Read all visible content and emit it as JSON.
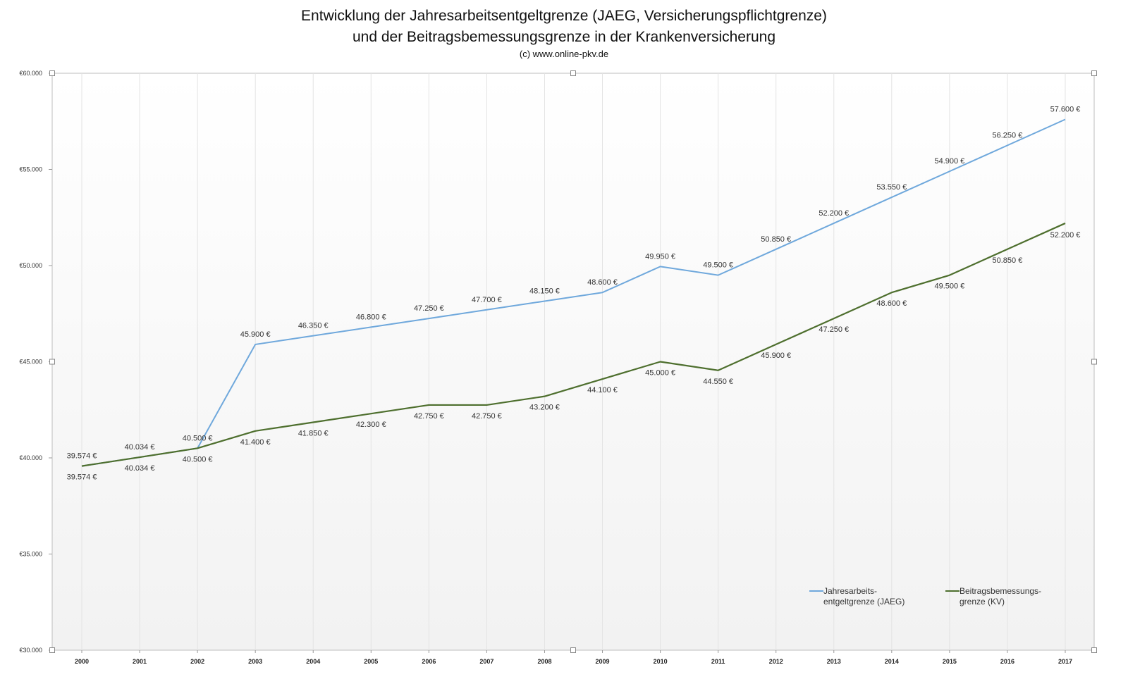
{
  "chart_data": {
    "type": "line",
    "title": "Entwicklung der Jahresarbeitsentgeltgrenze (JAEG, Versicherungspflichtgrenze)",
    "subtitle": "und der Beitragsbemessungsgrenze in der Krankenversicherung",
    "source": "(c) www.online-pkv.de",
    "xlabel": "",
    "ylabel": "",
    "ylim": [
      30000,
      60000
    ],
    "yticks": [
      30000,
      35000,
      40000,
      45000,
      50000,
      55000,
      60000
    ],
    "ytick_labels": [
      "€30.000",
      "€35.000",
      "€40.000",
      "€45.000",
      "€50.000",
      "€55.000",
      "€60.000"
    ],
    "categories": [
      "2000",
      "2001",
      "2002",
      "2003",
      "2004",
      "2005",
      "2006",
      "2007",
      "2008",
      "2009",
      "2010",
      "2011",
      "2012",
      "2013",
      "2014",
      "2015",
      "2016",
      "2017"
    ],
    "legend_position": "bottom-right",
    "series": [
      {
        "name": "Jahresarbeits-entgeltgrenze (JAEG)",
        "legend_lines": [
          "Jahresarbeits-",
          "entgeltgrenze (JAEG)"
        ],
        "color": "#6fa8dc",
        "values": [
          39574,
          40034,
          40500,
          45900,
          46350,
          46800,
          47250,
          47700,
          48150,
          48600,
          49950,
          49500,
          50850,
          52200,
          53550,
          54900,
          56250,
          57600
        ],
        "labels": [
          "39.574 €",
          "40.034 €",
          "40.500 €",
          "45.900 €",
          "46.350 €",
          "46.800 €",
          "47.250 €",
          "47.700 €",
          "48.150 €",
          "48.600 €",
          "49.950 €",
          "49.500 €",
          "50.850 €",
          "52.200 €",
          "53.550 €",
          "54.900 €",
          "56.250 €",
          "57.600 €"
        ]
      },
      {
        "name": "Beitragsbemessungs-grenze (KV)",
        "legend_lines": [
          "Beitragsbemessungs-",
          "grenze (KV)"
        ],
        "color": "#4e6f2e",
        "values": [
          39574,
          40034,
          40500,
          41400,
          41850,
          42300,
          42750,
          42750,
          43200,
          44100,
          45000,
          44550,
          45900,
          47250,
          48600,
          49500,
          50850,
          52200
        ],
        "labels": [
          "39.574 €",
          "40.034 €",
          "40.500 €",
          "41.400 €",
          "41.850 €",
          "42.300 €",
          "42.750 €",
          "42.750 €",
          "43.200 €",
          "44.100 €",
          "45.000 €",
          "44.550 €",
          "45.900 €",
          "47.250 €",
          "48.600 €",
          "49.500 €",
          "50.850 €",
          "52.200 €"
        ]
      }
    ]
  }
}
